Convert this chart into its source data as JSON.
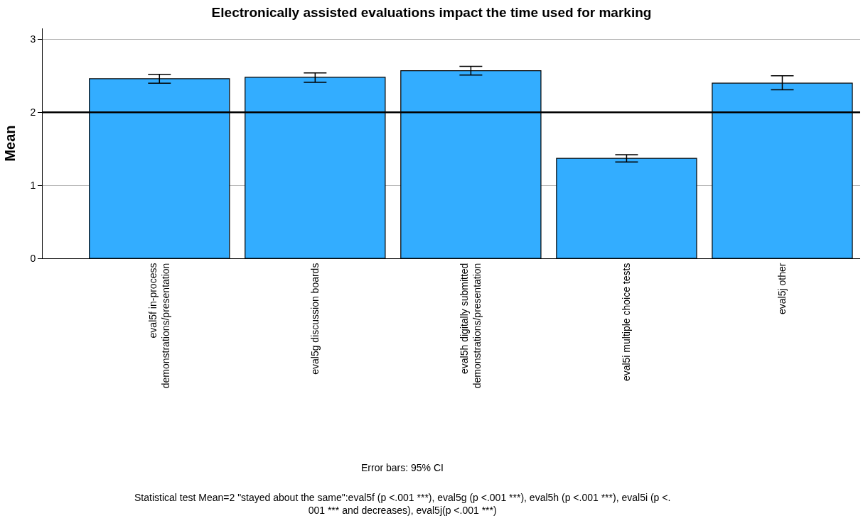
{
  "chart_data": {
    "type": "bar",
    "title": "Electronically assisted evaluations impact the time used for marking",
    "ylabel": "Mean",
    "categories": [
      "eval5f in-process\ndemonstrations/presentation",
      "eval5g discussion boards",
      "eval5h digitally submitted\ndemonstrations/presentation",
      "eval5i multiple choice tests",
      "eval5j other"
    ],
    "values": [
      2.46,
      2.48,
      2.57,
      1.37,
      2.4
    ],
    "errors": [
      [
        2.4,
        2.52
      ],
      [
        2.41,
        2.54
      ],
      [
        2.51,
        2.63
      ],
      [
        1.32,
        1.42
      ],
      [
        2.31,
        2.5
      ]
    ],
    "color": "#33adff",
    "ylim": [
      0,
      3.15
    ],
    "yticks": [
      0,
      1,
      2,
      3
    ],
    "grid": "y",
    "ref_lines": [
      {
        "axis": "y",
        "value": 2,
        "color": "#000000"
      }
    ],
    "annotations": [
      "Error bars: 95% CI",
      "Statistical test Mean=2 \"stayed about the same\":eval5f (p <.001 ***), eval5g (p <.001 ***), eval5h (p <.001 ***), eval5i (p <.\n001 *** and decreases), eval5j(p <.001 ***)"
    ]
  }
}
